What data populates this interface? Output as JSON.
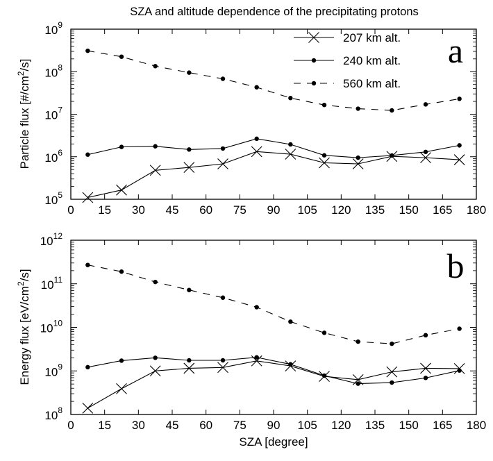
{
  "title": "SZA and altitude dependence of the precipitating protons",
  "chart_data": [
    {
      "type": "line",
      "panel_label": "a",
      "xlabel": "",
      "ylabel": "Particle flux [#/cm2/s]",
      "ylabel_parts": {
        "pre": "Particle flux [#/cm",
        "sup": "2",
        "post": "/s]"
      },
      "yscale": "log",
      "ylim": [
        100000,
        1000000000
      ],
      "yticks": [
        {
          "value": 100000,
          "base": "10",
          "exp": "5"
        },
        {
          "value": 1000000,
          "base": "10",
          "exp": "6"
        },
        {
          "value": 10000000,
          "base": "10",
          "exp": "7"
        },
        {
          "value": 100000000,
          "base": "10",
          "exp": "8"
        },
        {
          "value": 1000000000,
          "base": "10",
          "exp": "9"
        }
      ],
      "xlim": [
        0,
        180
      ],
      "xticks": [
        "0",
        "15",
        "30",
        "45",
        "60",
        "75",
        "90",
        "105",
        "120",
        "135",
        "150",
        "165",
        "180"
      ],
      "x": [
        7.5,
        22.5,
        37.5,
        52.5,
        67.5,
        82.5,
        97.5,
        112.5,
        127.5,
        142.5,
        157.5,
        172.5
      ],
      "series": [
        {
          "name": "207 km alt.",
          "marker": "x",
          "line": "solid",
          "values": [
            110000,
            165000,
            480000,
            560000,
            680000,
            1320000,
            1150000,
            720000,
            680000,
            1020000,
            950000,
            850000
          ]
        },
        {
          "name": "240 km alt.",
          "marker": "dot",
          "line": "solid",
          "values": [
            1120000,
            1700000,
            1760000,
            1480000,
            1560000,
            2650000,
            1950000,
            1080000,
            950000,
            1070000,
            1300000,
            1850000
          ]
        },
        {
          "name": "560 km alt.",
          "marker": "dot",
          "line": "dashed",
          "values": [
            310000000,
            225000000,
            135000000,
            95000000,
            68000000,
            43000000,
            24000000,
            16500000,
            13500000,
            12300000,
            17000000,
            23000000
          ]
        }
      ]
    },
    {
      "type": "line",
      "panel_label": "b",
      "xlabel": "SZA [degree]",
      "ylabel": "Energy flux [eV/cm2/s]",
      "ylabel_parts": {
        "pre": "Energy flux [eV/cm",
        "sup": "2",
        "post": "/s]"
      },
      "yscale": "log",
      "ylim": [
        100000000,
        1000000000000
      ],
      "yticks": [
        {
          "value": 100000000,
          "base": "10",
          "exp": "8"
        },
        {
          "value": 1000000000,
          "base": "10",
          "exp": "9"
        },
        {
          "value": 10000000000,
          "base": "10",
          "exp": "10"
        },
        {
          "value": 100000000000,
          "base": "10",
          "exp": "11"
        },
        {
          "value": 1000000000000,
          "base": "10",
          "exp": "12"
        }
      ],
      "xlim": [
        0,
        180
      ],
      "xticks": [
        "0",
        "15",
        "30",
        "45",
        "60",
        "75",
        "90",
        "105",
        "120",
        "135",
        "150",
        "165",
        "180"
      ],
      "x": [
        7.5,
        22.5,
        37.5,
        52.5,
        67.5,
        82.5,
        97.5,
        112.5,
        127.5,
        142.5,
        157.5,
        172.5
      ],
      "series": [
        {
          "name": "207 km alt.",
          "marker": "x",
          "line": "solid",
          "values": [
            140000000,
            390000000,
            1000000000,
            1150000000,
            1200000000,
            1700000000,
            1300000000,
            750000000,
            630000000,
            950000000,
            1150000000,
            1130000000
          ]
        },
        {
          "name": "240 km alt.",
          "marker": "dot",
          "line": "solid",
          "values": [
            1220000000,
            1720000000,
            2000000000,
            1750000000,
            1750000000,
            2050000000,
            1420000000,
            780000000,
            510000000,
            540000000,
            690000000,
            1020000000
          ]
        },
        {
          "name": "560 km alt.",
          "marker": "dot",
          "line": "dashed",
          "values": [
            270000000000,
            190000000000,
            110000000000,
            72000000000,
            48000000000,
            29000000000,
            13500000000,
            7500000000,
            4700000000,
            4200000000,
            6600000000,
            9300000000
          ]
        }
      ]
    }
  ],
  "legend": {
    "placement": "top-right",
    "items": [
      {
        "name": "207 km alt.",
        "marker": "x",
        "line": "solid"
      },
      {
        "name": "240 km alt.",
        "marker": "dot",
        "line": "solid"
      },
      {
        "name": "560 km alt.",
        "marker": "dot",
        "line": "dashed"
      }
    ]
  }
}
